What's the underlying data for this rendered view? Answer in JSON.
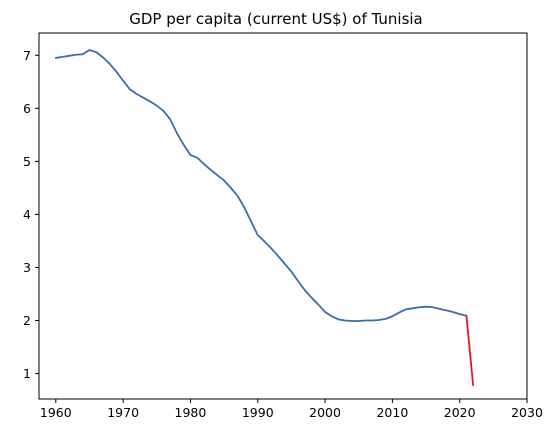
{
  "chart_data": {
    "type": "line",
    "title": "GDP per capita (current US$) of Tunisia",
    "xlabel": "",
    "ylabel": "",
    "xlim": [
      1957.5,
      2030
    ],
    "ylim": [
      0.52,
      7.42
    ],
    "xticks": [
      1960,
      1970,
      1980,
      1990,
      2000,
      2010,
      2020,
      2030
    ],
    "yticks": [
      1,
      2,
      3,
      4,
      5,
      6,
      7
    ],
    "grid": false,
    "series": [
      {
        "color": "#3a6ea5",
        "x": [
          1960,
          1961,
          1962,
          1963,
          1964,
          1965,
          1966,
          1967,
          1968,
          1969,
          1970,
          1971,
          1972,
          1973,
          1974,
          1975,
          1976,
          1977,
          1978,
          1979,
          1980,
          1981,
          1982,
          1983,
          1984,
          1985,
          1986,
          1987,
          1988,
          1989,
          1990,
          1991,
          1992,
          1993,
          1994,
          1995,
          1996,
          1997,
          1998,
          1999,
          2000,
          2001,
          2002,
          2003,
          2004,
          2005,
          2006,
          2007,
          2008,
          2009,
          2010,
          2011,
          2012,
          2013,
          2014,
          2015,
          2016,
          2017,
          2018,
          2019,
          2020,
          2021
        ],
        "y": [
          6.95,
          6.97,
          6.99,
          7.01,
          7.02,
          7.1,
          7.06,
          6.96,
          6.84,
          6.69,
          6.52,
          6.36,
          6.27,
          6.2,
          6.13,
          6.05,
          5.95,
          5.79,
          5.53,
          5.31,
          5.12,
          5.07,
          4.95,
          4.84,
          4.74,
          4.64,
          4.5,
          4.35,
          4.13,
          3.87,
          3.61,
          3.49,
          3.36,
          3.22,
          3.07,
          2.92,
          2.74,
          2.57,
          2.43,
          2.3,
          2.16,
          2.08,
          2.02,
          2.0,
          1.99,
          1.99,
          2.0,
          2.0,
          2.01,
          2.03,
          2.08,
          2.15,
          2.21,
          2.23,
          2.25,
          2.26,
          2.25,
          2.22,
          2.19,
          2.16,
          2.12,
          2.09
        ]
      },
      {
        "color": "#e31a1c",
        "x": [
          2021,
          2022
        ],
        "y": [
          2.09,
          0.78
        ]
      }
    ]
  }
}
